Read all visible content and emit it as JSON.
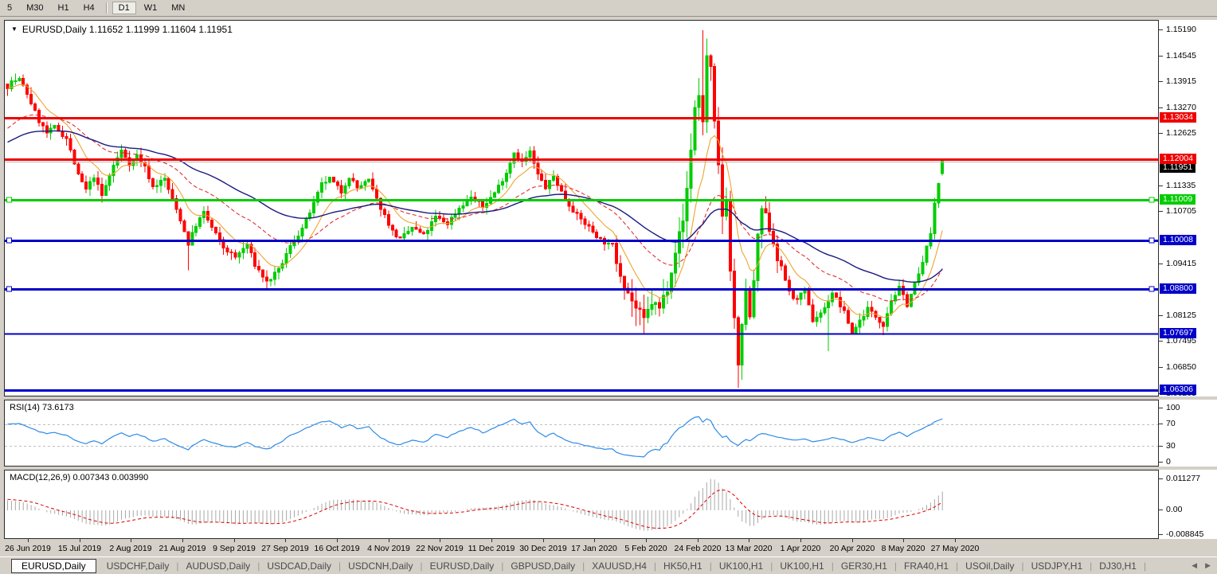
{
  "toolbar": {
    "timeframe_buttons": [
      "5",
      "M30",
      "H1",
      "H4",
      "D1",
      "W1",
      "MN"
    ],
    "active_timeframe": "D1"
  },
  "main_chart": {
    "title": "EURUSD,Daily  1.11652 1.11999 1.11604 1.11951",
    "symbol": "EURUSD,Daily"
  },
  "chart_data": {
    "type": "candlestick",
    "symbol": "EURUSD",
    "timeframe": "Daily",
    "last_ohlc": {
      "open": 1.11652,
      "high": 1.11999,
      "low": 1.11604,
      "close": 1.11951
    },
    "x_tick_labels": [
      "26 Jun 2019",
      "15 Jul 2019",
      "2 Aug 2019",
      "21 Aug 2019",
      "9 Sep 2019",
      "27 Sep 2019",
      "16 Oct 2019",
      "4 Nov 2019",
      "22 Nov 2019",
      "11 Dec 2019",
      "30 Dec 2019",
      "17 Jan 2020",
      "5 Feb 2020",
      "24 Feb 2020",
      "13 Mar 2020",
      "1 Apr 2020",
      "20 Apr 2020",
      "8 May 2020",
      "27 May 2020"
    ],
    "y_tick_labels": [
      "1.15190",
      "1.14545",
      "1.13915",
      "1.13270",
      "1.12625",
      "1.11335",
      "1.10705",
      "1.09415",
      "1.08125",
      "1.07495",
      "1.06850",
      "1.06205"
    ],
    "ylim": [
      1.059,
      1.1545
    ],
    "horizontal_lines": [
      {
        "price": 1.13034,
        "label": "1.13034",
        "color": "#ee0000",
        "thickness": 3,
        "markers": false,
        "label_bg": "#ee0000"
      },
      {
        "price": 1.12004,
        "label": "1.12004",
        "color": "#ee0000",
        "thickness": 3,
        "markers": false,
        "label_bg": "#ee0000"
      },
      {
        "price": 1.11951,
        "label": "1.11951",
        "color": "#b8b8b8",
        "thickness": 1,
        "markers": false,
        "label_bg": "#000000",
        "is_price_line": true
      },
      {
        "price": 1.11009,
        "label": "1.11009",
        "color": "#00cc00",
        "thickness": 3,
        "markers": true,
        "label_bg": "#00cc00"
      },
      {
        "price": 1.10008,
        "label": "1.10008",
        "color": "#0000c8",
        "thickness": 3,
        "markers": true,
        "label_bg": "#0000c8"
      },
      {
        "price": 1.088,
        "label": "1.08800",
        "color": "#0000c8",
        "thickness": 3,
        "markers": true,
        "label_bg": "#0000c8"
      },
      {
        "price": 1.07697,
        "label": "1.07697",
        "color": "#0000c8",
        "thickness": 2,
        "markers": false,
        "label_bg": "#0000c8"
      },
      {
        "price": 1.06306,
        "label": "1.06306",
        "color": "#0000c8",
        "thickness": 3,
        "markers": false,
        "label_bg": "#0000c8"
      }
    ],
    "candle_count": 239,
    "price_path": [
      [
        0,
        1.138
      ],
      [
        1,
        1.1392
      ],
      [
        3,
        1.1398
      ],
      [
        5,
        1.1362
      ],
      [
        8,
        1.1295
      ],
      [
        10,
        1.1265
      ],
      [
        12,
        1.128
      ],
      [
        15,
        1.1252
      ],
      [
        18,
        1.116
      ],
      [
        20,
        1.1125
      ],
      [
        22,
        1.1158
      ],
      [
        24,
        1.111
      ],
      [
        27,
        1.1185
      ],
      [
        29,
        1.1222
      ],
      [
        31,
        1.119
      ],
      [
        33,
        1.121
      ],
      [
        35,
        1.118
      ],
      [
        37,
        1.1132
      ],
      [
        40,
        1.1152
      ],
      [
        42,
        1.11
      ],
      [
        44,
        1.1052
      ],
      [
        46,
        1.0992
      ],
      [
        48,
        1.1038
      ],
      [
        50,
        1.1068
      ],
      [
        52,
        1.1032
      ],
      [
        55,
        1.0982
      ],
      [
        58,
        1.0958
      ],
      [
        61,
        1.099
      ],
      [
        63,
        1.094
      ],
      [
        66,
        1.0897
      ],
      [
        69,
        1.0926
      ],
      [
        72,
        1.0985
      ],
      [
        75,
        1.103
      ],
      [
        78,
        1.109
      ],
      [
        80,
        1.1138
      ],
      [
        82,
        1.1152
      ],
      [
        85,
        1.112
      ],
      [
        87,
        1.1158
      ],
      [
        89,
        1.113
      ],
      [
        92,
        1.1148
      ],
      [
        94,
        1.11
      ],
      [
        96,
        1.1062
      ],
      [
        98,
        1.1022
      ],
      [
        100,
        1.1002
      ],
      [
        103,
        1.1032
      ],
      [
        106,
        1.1012
      ],
      [
        109,
        1.1058
      ],
      [
        112,
        1.1042
      ],
      [
        115,
        1.108
      ],
      [
        118,
        1.1108
      ],
      [
        121,
        1.1082
      ],
      [
        124,
        1.1118
      ],
      [
        127,
        1.1168
      ],
      [
        129,
        1.1218
      ],
      [
        131,
        1.1192
      ],
      [
        133,
        1.1218
      ],
      [
        135,
        1.1162
      ],
      [
        137,
        1.113
      ],
      [
        139,
        1.1158
      ],
      [
        142,
        1.1102
      ],
      [
        145,
        1.1062
      ],
      [
        148,
        1.1032
      ],
      [
        151,
        1.1002
      ],
      [
        154,
        1.0982
      ],
      [
        156,
        1.0922
      ],
      [
        158,
        1.0872
      ],
      [
        160,
        1.0832
      ],
      [
        162,
        1.08
      ],
      [
        164,
        1.0848
      ],
      [
        166,
        1.083
      ],
      [
        168,
        1.0888
      ],
      [
        170,
        1.0978
      ],
      [
        172,
        1.1048
      ],
      [
        173,
        1.1128
      ],
      [
        174,
        1.1228
      ],
      [
        175,
        1.1328
      ],
      [
        176,
        1.1358
      ],
      [
        177,
        1.1298
      ],
      [
        178,
        1.1452
      ],
      [
        179,
        1.142
      ],
      [
        180,
        1.1282
      ],
      [
        181,
        1.118
      ],
      [
        182,
        1.1062
      ],
      [
        183,
        1.1112
      ],
      [
        184,
        1.0922
      ],
      [
        185,
        1.0812
      ],
      [
        186,
        1.0682
      ],
      [
        187,
        1.0782
      ],
      [
        188,
        1.0882
      ],
      [
        189,
        1.0802
      ],
      [
        190,
        1.0902
      ],
      [
        191,
        1.1002
      ],
      [
        192,
        1.1078
      ],
      [
        194,
        1.1032
      ],
      [
        196,
        1.0962
      ],
      [
        198,
        1.0902
      ],
      [
        200,
        1.0852
      ],
      [
        203,
        1.0872
      ],
      [
        205,
        1.0802
      ],
      [
        208,
        1.0832
      ],
      [
        210,
        1.0872
      ],
      [
        213,
        1.0822
      ],
      [
        215,
        1.0772
      ],
      [
        217,
        1.0802
      ],
      [
        219,
        1.0832
      ],
      [
        221,
        1.0812
      ],
      [
        223,
        1.0792
      ],
      [
        225,
        1.0852
      ],
      [
        227,
        1.0882
      ],
      [
        229,
        1.0842
      ],
      [
        231,
        1.0892
      ],
      [
        233,
        1.0942
      ],
      [
        234,
        1.0992
      ],
      [
        235,
        1.1012
      ],
      [
        236,
        1.1092
      ],
      [
        237,
        1.1142
      ],
      [
        238,
        1.11951
      ]
    ],
    "candle_overrides": {
      "2": {
        "h": 1.1412
      },
      "46": {
        "l": 1.0926
      },
      "66": {
        "l": 1.0879
      },
      "177": {
        "h": 1.1519
      },
      "178": {
        "h": 1.1498
      },
      "186": {
        "l": 1.0636
      },
      "209": {
        "l": 1.0727
      },
      "223": {
        "l": 1.0766
      },
      "238": {
        "o": 1.11652,
        "h": 1.11999,
        "l": 1.11604,
        "c": 1.11951
      }
    },
    "moving_averages": [
      {
        "name": "fast",
        "color": "#efa431",
        "period": 10,
        "style": "solid"
      },
      {
        "name": "mid",
        "color": "#e03030",
        "period": 30,
        "style": "dashed"
      },
      {
        "name": "slow",
        "color": "#1a1a80",
        "period": 60,
        "style": "solid"
      }
    ],
    "colors": {
      "bull": "#00cc00",
      "bear": "#ff0000",
      "background": "#ffffff"
    }
  },
  "rsi_panel": {
    "label": "RSI(14) 73.6173",
    "period": 14,
    "value": 73.6173,
    "levels": [
      100,
      70,
      30,
      0
    ],
    "line_color": "#2e8be6"
  },
  "macd_panel": {
    "label": "MACD(12,26,9) 0.007343 0.003990",
    "macd": 0.007343,
    "signal": 0.00399,
    "axis_labels": [
      "0.011277",
      "0.00",
      "-0.008845"
    ],
    "axis_values": [
      0.011277,
      0,
      -0.008845
    ],
    "histogram_color": "#a8a8a8",
    "signal_color": "#dd0000"
  },
  "tab_bar": {
    "tabs": [
      {
        "label": "EURUSD,Daily",
        "active": true
      },
      {
        "label": "USDCHF,Daily",
        "active": false
      },
      {
        "label": "AUDUSD,Daily",
        "active": false
      },
      {
        "label": "USDCAD,Daily",
        "active": false
      },
      {
        "label": "USDCNH,Daily",
        "active": false
      },
      {
        "label": "EURUSD,Daily",
        "active": false
      },
      {
        "label": "GBPUSD,Daily",
        "active": false
      },
      {
        "label": "XAUUSD,H4",
        "active": false
      },
      {
        "label": "HK50,H1",
        "active": false
      },
      {
        "label": "UK100,H1",
        "active": false
      },
      {
        "label": "UK100,H1",
        "active": false
      },
      {
        "label": "GER30,H1",
        "active": false
      },
      {
        "label": "FRA40,H1",
        "active": false
      },
      {
        "label": "USOil,Daily",
        "active": false
      },
      {
        "label": "USDJPY,H1",
        "active": false
      },
      {
        "label": "DJ30,H1",
        "active": false
      }
    ],
    "scroll_left_icon": "◀",
    "scroll_right_icon": "▶"
  }
}
